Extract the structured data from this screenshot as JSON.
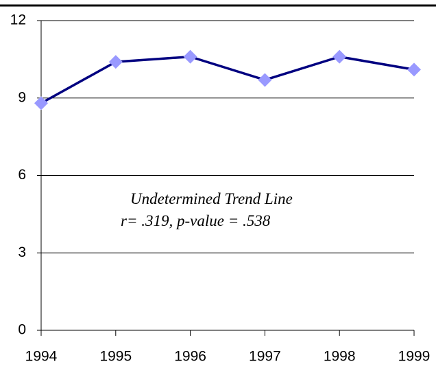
{
  "chart_data": {
    "type": "line",
    "x": [
      1994,
      1995,
      1996,
      1997,
      1998,
      1999
    ],
    "values": [
      8.8,
      10.4,
      10.6,
      9.7,
      10.6,
      10.1
    ],
    "color": "#000080",
    "marker_color": "#9999ff",
    "xlim": [
      1994,
      1999
    ],
    "xticks": [
      1994,
      1995,
      1996,
      1997,
      1998,
      1999
    ],
    "ylim": [
      0,
      12
    ],
    "yticks": [
      0,
      3,
      6,
      9,
      12
    ],
    "grid": true,
    "annotation": [
      "Undetermined Trend Line",
      "r= .319, p-value = .538"
    ]
  }
}
